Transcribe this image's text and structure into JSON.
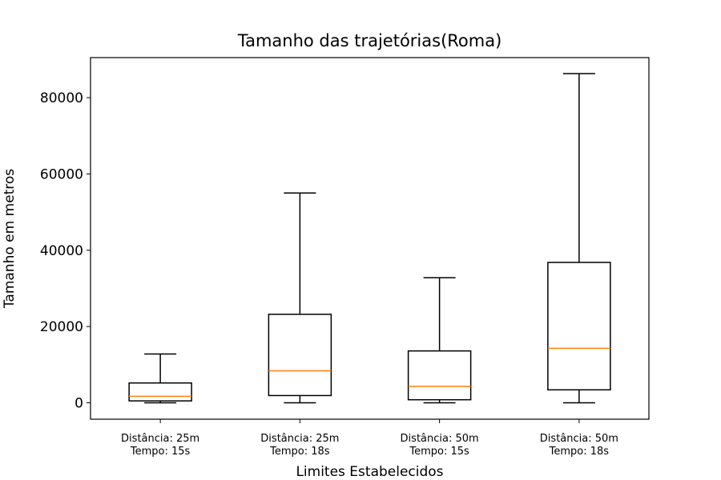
{
  "chart_data": {
    "type": "boxplot",
    "title": "Tamanho das trajetórias(Roma)",
    "xlabel": "Limites Estabelecidos",
    "ylabel": "Tamanho em metros",
    "ylim": [
      -4300,
      90500
    ],
    "yticks": [
      0,
      20000,
      40000,
      60000,
      80000
    ],
    "grid": false,
    "categories": [
      [
        "Distância: 25m",
        "Tempo: 15s"
      ],
      [
        "Distância: 25m",
        "Tempo: 18s"
      ],
      [
        "Distância: 50m",
        "Tempo: 15s"
      ],
      [
        "Distância: 50m",
        "Tempo: 18s"
      ]
    ],
    "boxes": [
      {
        "whislo": 0,
        "q1": 500,
        "med": 1700,
        "q3": 5200,
        "whishi": 12800
      },
      {
        "whislo": 0,
        "q1": 1900,
        "med": 8400,
        "q3": 23200,
        "whishi": 55000
      },
      {
        "whislo": 0,
        "q1": 800,
        "med": 4300,
        "q3": 13600,
        "whishi": 32800
      },
      {
        "whislo": 0,
        "q1": 3400,
        "med": 14300,
        "q3": 36800,
        "whishi": 86300
      }
    ],
    "colors": {
      "box": "#000000",
      "median": "#ff7f0e"
    }
  }
}
